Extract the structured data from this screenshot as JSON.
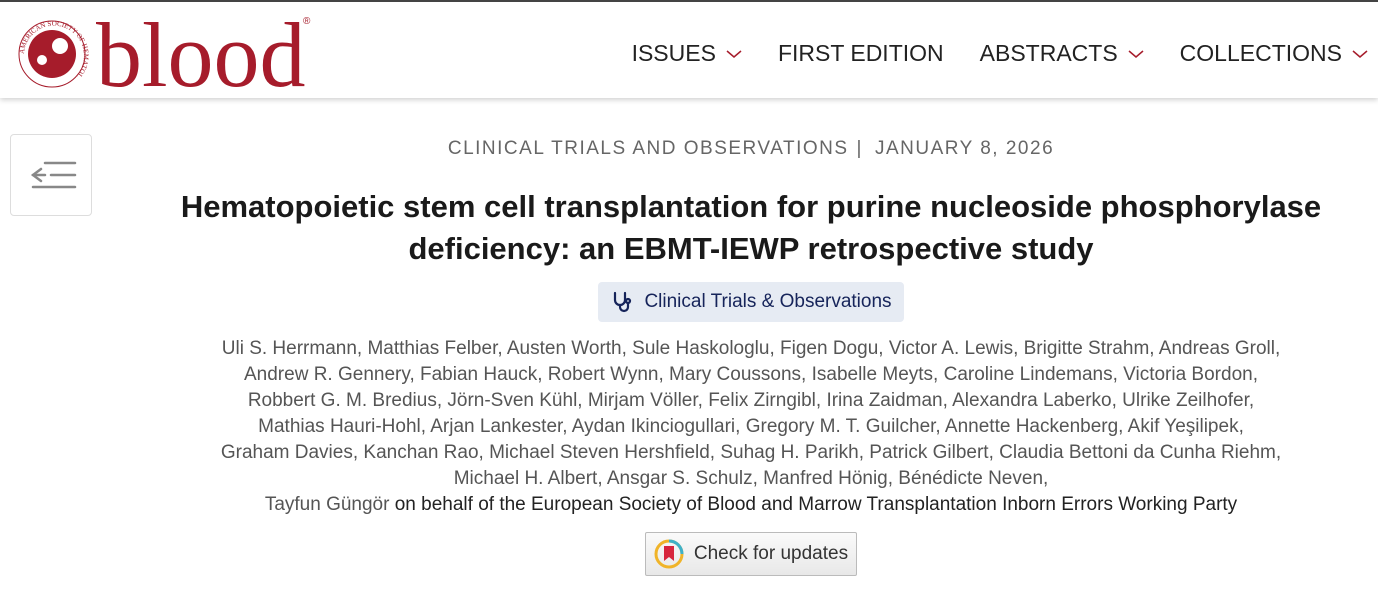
{
  "header": {
    "logo": {
      "society": "AMERICAN SOCIETY OF HEMATOLOGY",
      "wordmark": "blood",
      "registered": "®"
    },
    "nav": [
      "ISSUES",
      "FIRST EDITION",
      "ABSTRACTS",
      "COLLECTIONS"
    ]
  },
  "article": {
    "section": "CLINICAL TRIALS AND OBSERVATIONS",
    "separator": "|",
    "date": "JANUARY 8, 2026",
    "title_lines": [
      "Hematopoietic stem cell transplantation for purine nucleoside phosphorylase",
      "deficiency: an EBMT-IEWP retrospective study"
    ],
    "badge": "Clinical Trials & Observations",
    "author_lines": [
      "Uli S. Herrmann, Matthias Felber, Austen Worth, Sule Haskologlu, Figen Dogu, Victor A. Lewis, Brigitte Strahm, Andreas Groll,",
      "Andrew R. Gennery, Fabian Hauck, Robert Wynn, Mary Coussons, Isabelle Meyts, Caroline Lindemans, Victoria Bordon,",
      "Robbert G. M. Bredius, Jörn-Sven Kühl, Mirjam Völler, Felix Zirngibl, Irina Zaidman, Alexandra Laberko, Ulrike Zeilhofer,",
      "Mathias Hauri-Hohl, Arjan Lankester, Aydan Ikinciogullari, Gregory M. T. Guilcher, Annette Hackenberg, Akif Yeşilipek,",
      "Graham Davies, Kanchan Rao, Michael Steven Hershfield, Suhag H. Parikh, Patrick Gilbert, Claudia Bettoni da Cunha Riehm,",
      "Michael H. Albert, Ansgar S. Schulz, Manfred Hönig, Bénédicte Neven,"
    ],
    "last_author": "Tayfun Güngör",
    "group": "on behalf of the European Society of Blood and Marrow Transplantation Inborn Errors Working Party",
    "check_updates": "Check for updates"
  }
}
